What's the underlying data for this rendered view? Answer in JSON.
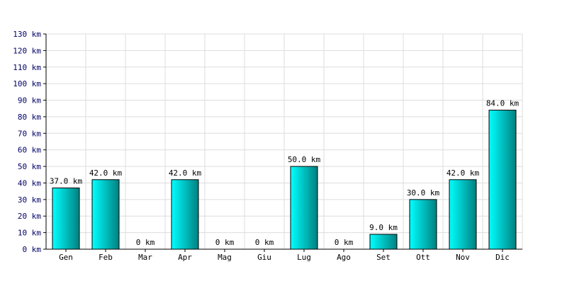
{
  "chart_data": {
    "type": "bar",
    "title": "",
    "xlabel": "",
    "ylabel": "",
    "unit": "km",
    "categories": [
      "Gen",
      "Feb",
      "Mar",
      "Apr",
      "Mag",
      "Giu",
      "Lug",
      "Ago",
      "Set",
      "Ott",
      "Nov",
      "Dic"
    ],
    "values": [
      37.0,
      42.0,
      0,
      42.0,
      0,
      0,
      50.0,
      0,
      9.0,
      30.0,
      42.0,
      84.0
    ],
    "data_labels": [
      "37.0 km",
      "42.0 km",
      "0 km",
      "42.0 km",
      "0 km",
      "0 km",
      "50.0 km",
      "0 km",
      "9.0 km",
      "30.0 km",
      "42.0 km",
      "84.0 km"
    ],
    "y_tick_labels": [
      "0 km",
      "10 km",
      "20 km",
      "30 km",
      "40 km",
      "50 km",
      "60 km",
      "70 km",
      "80 km",
      "90 km",
      "100 km",
      "110 km",
      "120 km",
      "130 km"
    ],
    "ylim": [
      0,
      130
    ],
    "ytick_step": 10,
    "grid": true,
    "legend": "none",
    "colors": {
      "bar_light": "#00ffff",
      "bar_dark": "#008080",
      "bar_outline": "#000000",
      "grid": "#dddddd",
      "axis": "#000000",
      "y_tick_text": "#000066"
    }
  }
}
